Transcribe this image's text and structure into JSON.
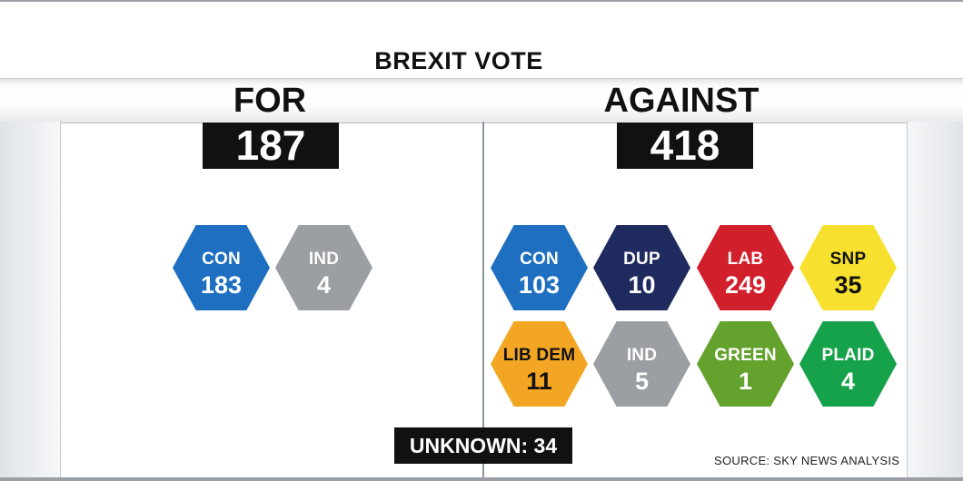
{
  "title": "BREXIT VOTE",
  "for": {
    "label": "FOR",
    "total": "187",
    "parties": [
      {
        "party": "CON",
        "seats": "183",
        "color": "#1e6fc0",
        "text_color": "#ffffff"
      },
      {
        "party": "IND",
        "seats": "4",
        "color": "#9b9ea2",
        "text_color": "#ffffff"
      }
    ]
  },
  "against": {
    "label": "AGAINST",
    "total": "418",
    "parties": [
      {
        "party": "CON",
        "seats": "103",
        "color": "#1e6fc0",
        "text_color": "#ffffff"
      },
      {
        "party": "DUP",
        "seats": "10",
        "color": "#1f2a5e",
        "text_color": "#ffffff"
      },
      {
        "party": "LAB",
        "seats": "249",
        "color": "#d21f2c",
        "text_color": "#ffffff"
      },
      {
        "party": "SNP",
        "seats": "35",
        "color": "#f7e12e",
        "text_color": "#111111"
      },
      {
        "party": "LIB DEM",
        "seats": "11",
        "color": "#f2a623",
        "text_color": "#111111"
      },
      {
        "party": "IND",
        "seats": "5",
        "color": "#9b9ea2",
        "text_color": "#ffffff"
      },
      {
        "party": "GREEN",
        "seats": "1",
        "color": "#64a22e",
        "text_color": "#ffffff"
      },
      {
        "party": "PLAID",
        "seats": "4",
        "color": "#16a24a",
        "text_color": "#ffffff"
      }
    ]
  },
  "unknown": "UNKNOWN: 34",
  "source": "SOURCE: SKY NEWS ANALYSIS"
}
